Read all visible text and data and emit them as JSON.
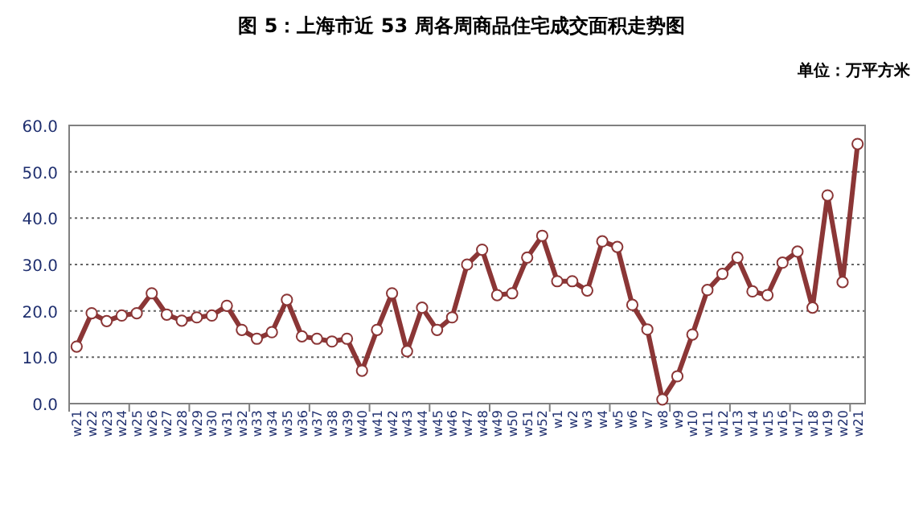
{
  "chart_data": {
    "type": "line",
    "title": "图 5：上海市近 53 周各周商品住宅成交面积走势图",
    "subtitle": "单位：万平方米",
    "categories": [
      "w21",
      "w22",
      "w23",
      "w24",
      "w25",
      "w26",
      "w27",
      "w28",
      "w29",
      "w30",
      "w31",
      "w32",
      "w33",
      "w34",
      "w35",
      "w36",
      "w37",
      "w38",
      "w39",
      "w40",
      "w41",
      "w42",
      "w43",
      "w44",
      "w45",
      "w46",
      "w47",
      "w48",
      "w49",
      "w50",
      "w51",
      "w52",
      "w1",
      "w2",
      "w3",
      "w4",
      "w5",
      "w6",
      "w7",
      "w8",
      "w9",
      "w10",
      "w11",
      "w12",
      "w13",
      "w14",
      "w15",
      "w16",
      "w17",
      "w18",
      "w19",
      "w20",
      "w21"
    ],
    "series": [
      {
        "color": "#8b3636",
        "values": [
          12.3,
          19.5,
          17.8,
          19.0,
          19.5,
          23.8,
          19.2,
          17.9,
          18.6,
          19.0,
          21.1,
          15.9,
          14.0,
          15.4,
          22.4,
          14.5,
          14.0,
          13.4,
          14.0,
          7.1,
          15.9,
          23.8,
          11.3,
          20.7,
          15.9,
          18.6,
          30.0,
          33.2,
          23.4,
          23.8,
          31.5,
          36.2,
          26.4,
          26.4,
          24.4,
          35.0,
          33.8,
          21.3,
          16.0,
          0.9,
          5.9,
          14.9,
          24.5,
          28.0,
          31.5,
          24.2,
          23.4,
          30.4,
          32.8,
          20.7,
          44.9,
          26.2,
          56.0
        ]
      }
    ],
    "ylim": [
      0,
      60
    ],
    "yticks": [
      {
        "value": 0,
        "label": "0.0"
      },
      {
        "value": 10,
        "label": "10.0"
      },
      {
        "value": 20,
        "label": "20.0"
      },
      {
        "value": 30,
        "label": "30.0"
      },
      {
        "value": 40,
        "label": "40.0"
      },
      {
        "value": 50,
        "label": "50.0"
      },
      {
        "value": 60,
        "label": "60.0"
      }
    ],
    "grid": "y",
    "marker": "circle",
    "line_style": "solid"
  }
}
